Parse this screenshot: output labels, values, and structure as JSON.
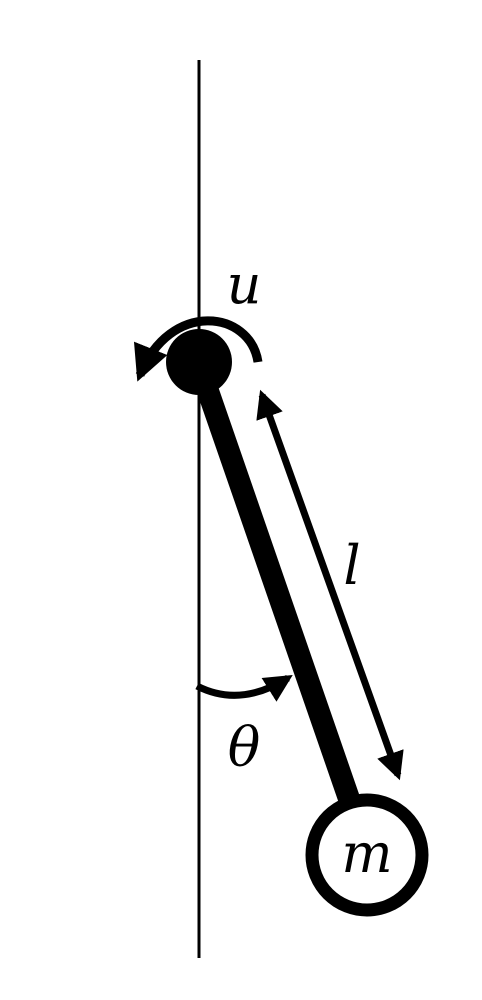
{
  "labels": {
    "torque": "u",
    "length": "l",
    "angle": "θ",
    "mass": "m"
  },
  "colors": {
    "ink": "#000000",
    "background": "#ffffff"
  }
}
